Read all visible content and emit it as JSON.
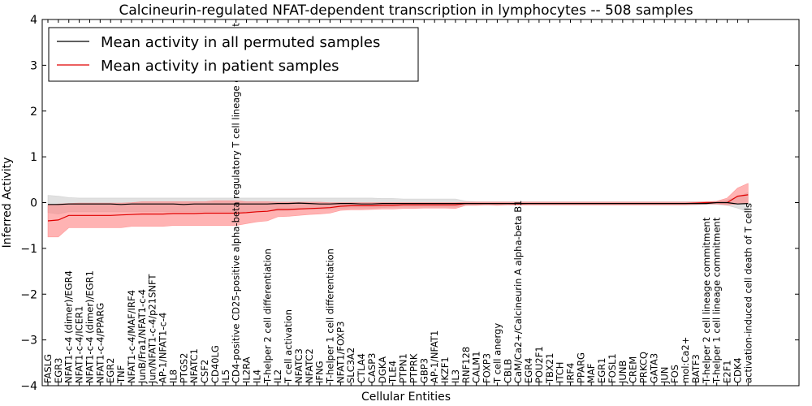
{
  "chart_data": {
    "type": "line",
    "title": "Calcineurin-regulated NFAT-dependent transcription in lymphocytes -- 508 samples",
    "xlabel": "Cellular Entities",
    "ylabel": "Inferred Activity",
    "ylim": [
      -4,
      4
    ],
    "yticks": [
      "4",
      "3",
      "2",
      "1",
      "0",
      "−1",
      "−2",
      "−3",
      "−4"
    ],
    "grid": false,
    "legend_position": "top-left",
    "categories": [
      "FASLG",
      "EGR3",
      "NFAT1-c-4 (dimer)/EGR4",
      "NFAT1-c-4/ICER1",
      "NFAT1-c-4 (dimer)/EGR1",
      "NFAT1-c-4/PPARG",
      "EGR2",
      "TNF",
      "NFAT1-c-4/MAF/IRF4",
      "JunB/Fra1/NFAT1-c-4",
      "Jun/NFAT1-c-4/p21SNFT",
      "AP-1/NFAT1-c-4",
      "IL8",
      "PTGS2",
      "NFATC1",
      "CSF2",
      "CD40LG",
      "IL5",
      "CD4-positive CD25-positive alpha-beta regulatory T cell lineage commitment",
      "IL2RA",
      "IL4",
      "T-helper 2 cell differentiation",
      "IL2",
      "T cell activation",
      "NFATC3",
      "NFATC2",
      "IFNG",
      "T-helper 1 cell differentiation",
      "NFAT1/FOXP3",
      "SLC3A2",
      "CTLA4",
      "CASP3",
      "DGKA",
      "TLE4",
      "PTPN1",
      "PTPRK",
      "GBP3",
      "AP-1/NFAT1",
      "IKZF1",
      "IL3",
      "RNF128",
      "CALM1",
      "FOXP3",
      "T cell anergy",
      "CBLB",
      "CaM/Ca2+/Calcineurin A alpha-beta B1",
      "EGR4",
      "POU2F1",
      "TBX21",
      "ITCH",
      "IRF4",
      "PPARG",
      "MAF",
      "EGR1",
      "FOSL1",
      "JUNB",
      "CREM",
      "PRKCQ",
      "GATA3",
      "JUN",
      "FOS",
      "mol:Ca2+",
      "BATF3",
      "T-helper 2 cell lineage commitment",
      "T-helper 1 cell lineage commitment",
      "E2F1",
      "CDK4",
      "activation-induced cell death of T cells"
    ],
    "series": [
      {
        "name": "Mean activity in all permuted samples",
        "color": "#000000",
        "band_color": "#c8c8c8",
        "values": [
          -0.04,
          -0.04,
          -0.03,
          -0.03,
          -0.03,
          -0.03,
          -0.03,
          -0.04,
          -0.03,
          -0.03,
          -0.03,
          -0.03,
          -0.03,
          -0.04,
          -0.03,
          -0.03,
          -0.03,
          -0.03,
          -0.03,
          -0.03,
          -0.03,
          -0.03,
          -0.02,
          -0.02,
          -0.01,
          -0.02,
          -0.03,
          -0.03,
          -0.02,
          -0.02,
          -0.03,
          -0.03,
          -0.02,
          -0.02,
          -0.02,
          -0.02,
          -0.02,
          -0.02,
          -0.02,
          -0.02,
          -0.02,
          -0.02,
          -0.02,
          -0.02,
          -0.02,
          -0.02,
          -0.02,
          -0.02,
          -0.02,
          -0.02,
          -0.02,
          -0.02,
          -0.02,
          -0.02,
          -0.02,
          -0.02,
          -0.02,
          -0.02,
          -0.02,
          -0.02,
          -0.02,
          -0.02,
          -0.02,
          -0.02,
          0.0,
          0.0,
          -0.03,
          -0.02
        ],
        "lower": [
          -0.22,
          -0.25,
          -0.2,
          -0.2,
          -0.2,
          -0.2,
          -0.2,
          -0.2,
          -0.2,
          -0.2,
          -0.2,
          -0.2,
          -0.2,
          -0.2,
          -0.2,
          -0.2,
          -0.2,
          -0.2,
          -0.2,
          -0.2,
          -0.19,
          -0.19,
          -0.18,
          -0.17,
          -0.15,
          -0.15,
          -0.15,
          -0.14,
          -0.13,
          -0.12,
          -0.12,
          -0.12,
          -0.11,
          -0.1,
          -0.1,
          -0.1,
          -0.1,
          -0.1,
          -0.1,
          -0.1,
          -0.06,
          -0.05,
          -0.05,
          -0.05,
          -0.05,
          -0.05,
          -0.05,
          -0.05,
          -0.05,
          -0.05,
          -0.05,
          -0.05,
          -0.05,
          -0.05,
          -0.05,
          -0.05,
          -0.05,
          -0.05,
          -0.05,
          -0.05,
          -0.05,
          -0.05,
          -0.05,
          -0.04,
          -0.04,
          -0.06,
          -0.12,
          -0.2
        ],
        "upper": [
          0.16,
          0.14,
          0.11,
          0.1,
          0.1,
          0.1,
          0.1,
          0.1,
          0.1,
          0.1,
          0.1,
          0.1,
          0.1,
          0.1,
          0.1,
          0.1,
          0.1,
          0.1,
          0.1,
          0.1,
          0.1,
          0.1,
          0.1,
          0.1,
          0.1,
          0.1,
          0.1,
          0.1,
          0.1,
          0.1,
          0.1,
          0.1,
          0.09,
          0.09,
          0.08,
          0.08,
          0.08,
          0.08,
          0.08,
          0.08,
          0.03,
          0.02,
          0.02,
          0.02,
          0.02,
          0.02,
          0.02,
          0.02,
          0.02,
          0.02,
          0.02,
          0.02,
          0.02,
          0.02,
          0.02,
          0.02,
          0.02,
          0.02,
          0.02,
          0.02,
          0.02,
          0.02,
          0.02,
          0.02,
          0.02,
          0.06,
          0.12,
          0.22
        ]
      },
      {
        "name": "Mean activity in patient samples",
        "color": "#e00000",
        "band_color": "#ff8080",
        "values": [
          -0.4,
          -0.38,
          -0.28,
          -0.28,
          -0.28,
          -0.28,
          -0.28,
          -0.27,
          -0.26,
          -0.25,
          -0.25,
          -0.25,
          -0.24,
          -0.24,
          -0.24,
          -0.23,
          -0.23,
          -0.23,
          -0.23,
          -0.22,
          -0.2,
          -0.19,
          -0.15,
          -0.15,
          -0.14,
          -0.13,
          -0.12,
          -0.11,
          -0.08,
          -0.07,
          -0.07,
          -0.07,
          -0.06,
          -0.06,
          -0.05,
          -0.05,
          -0.05,
          -0.05,
          -0.05,
          -0.05,
          -0.02,
          -0.02,
          -0.02,
          -0.02,
          -0.02,
          -0.03,
          -0.02,
          -0.02,
          -0.02,
          -0.02,
          -0.02,
          -0.02,
          -0.02,
          -0.02,
          -0.02,
          -0.02,
          -0.02,
          -0.02,
          -0.02,
          -0.02,
          -0.02,
          -0.02,
          -0.01,
          0.0,
          0.0,
          0.0,
          0.14,
          0.17
        ],
        "lower": [
          -0.75,
          -0.75,
          -0.55,
          -0.55,
          -0.55,
          -0.55,
          -0.55,
          -0.55,
          -0.52,
          -0.52,
          -0.52,
          -0.52,
          -0.5,
          -0.5,
          -0.5,
          -0.5,
          -0.5,
          -0.5,
          -0.5,
          -0.46,
          -0.42,
          -0.4,
          -0.31,
          -0.3,
          -0.28,
          -0.26,
          -0.25,
          -0.23,
          -0.17,
          -0.16,
          -0.16,
          -0.15,
          -0.14,
          -0.14,
          -0.13,
          -0.13,
          -0.12,
          -0.12,
          -0.12,
          -0.13,
          -0.06,
          -0.06,
          -0.05,
          -0.06,
          -0.05,
          -0.05,
          -0.05,
          -0.05,
          -0.05,
          -0.05,
          -0.05,
          -0.05,
          -0.05,
          -0.05,
          -0.05,
          -0.05,
          -0.05,
          -0.05,
          -0.05,
          -0.05,
          -0.05,
          -0.05,
          -0.04,
          -0.03,
          -0.03,
          -0.05,
          -0.03,
          -0.02
        ],
        "upper": [
          -0.06,
          -0.03,
          -0.02,
          -0.01,
          -0.01,
          -0.01,
          -0.01,
          -0.01,
          0.0,
          0.02,
          0.02,
          0.02,
          0.02,
          0.02,
          0.02,
          0.02,
          0.04,
          0.04,
          0.04,
          0.02,
          0.02,
          0.02,
          0.01,
          0.01,
          0.01,
          0.01,
          0.01,
          0.0,
          0.0,
          0.0,
          0.0,
          0.0,
          0.0,
          0.0,
          0.0,
          0.0,
          0.0,
          0.0,
          0.0,
          0.0,
          0.01,
          0.01,
          0.01,
          0.01,
          0.01,
          0.01,
          0.01,
          0.01,
          0.01,
          0.01,
          0.01,
          0.01,
          0.01,
          0.01,
          0.01,
          0.01,
          0.01,
          0.01,
          0.01,
          0.01,
          0.01,
          0.01,
          0.01,
          0.02,
          0.03,
          0.1,
          0.32,
          0.42
        ]
      }
    ]
  }
}
